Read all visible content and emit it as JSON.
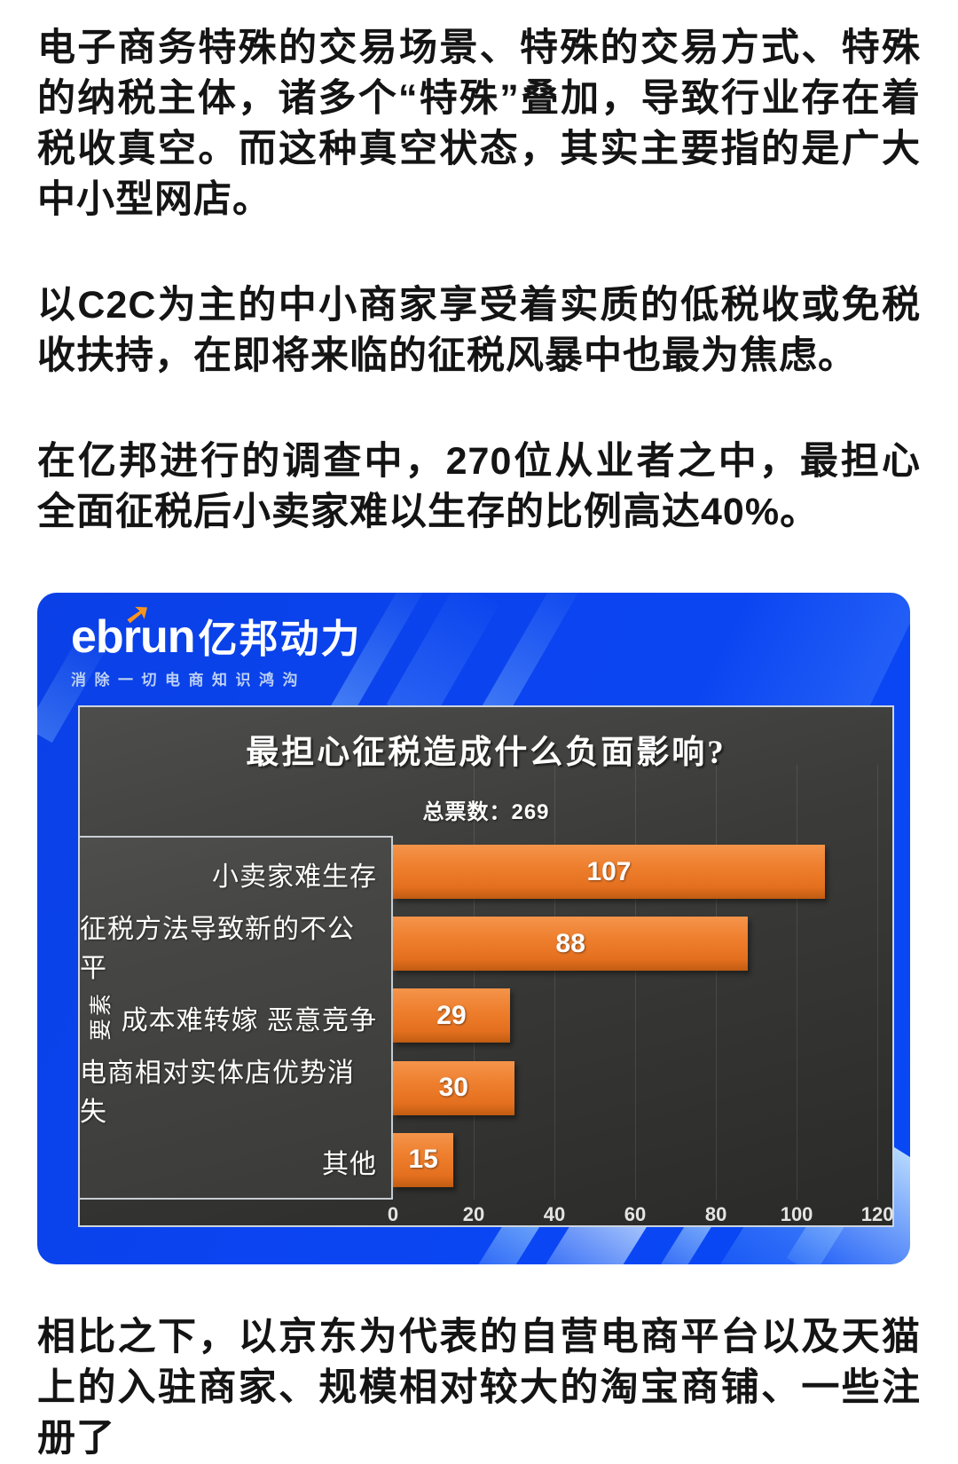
{
  "article": {
    "paragraph_1": "电子商务特殊的交易场景、特殊的交易方式、特殊的纳税主体，诸多个“特殊”叠加，导致行业存在着税收真空。而这种真空状态，其实主要指的是广大中小型网店。",
    "paragraph_2": "以C2C为主的中小商家享受着实质的低税收或免税收扶持，在即将来临的征税风暴中也最为焦虑。",
    "paragraph_3": "在亿邦进行的调查中，270位从业者之中，最担心全面征税后小卖家难以生存的比例高达40%。",
    "paragraph_4": "相比之下，以京东为代表的自营电商平台以及天猫上的入驻商家、规模相对较大的淘宝商铺、一些注册了"
  },
  "infographic": {
    "brand": {
      "logo_eb": "eb",
      "logo_r": "r",
      "logo_un": "un",
      "logo_arrow_icon": "➚",
      "logo_cn": "亿邦动力",
      "tagline": "消除一切电商知识鸿沟"
    },
    "colors": {
      "card_blue": "#0b45f2",
      "bar_orange": "#ee7e2d",
      "plot_dark": "#3b3b39",
      "logo_arrow_orange": "#f7941d"
    }
  },
  "chart_data": {
    "type": "bar",
    "orientation": "horizontal",
    "title": "最担心征税造成什么负面影响?",
    "subtitle": "总票数：269",
    "total_votes": 269,
    "ylabel": "要素",
    "xlabel": "",
    "categories": [
      "小卖家难生存",
      "征税方法导致新的不公平",
      "成本难转嫁 恶意竞争",
      "电商相对实体店优势消失",
      "其他"
    ],
    "values": [
      107,
      88,
      29,
      30,
      15
    ],
    "xlim": [
      0,
      120
    ],
    "xticks": [
      0,
      20,
      40,
      60,
      80,
      100,
      120
    ],
    "grid": true,
    "legend": "none"
  }
}
